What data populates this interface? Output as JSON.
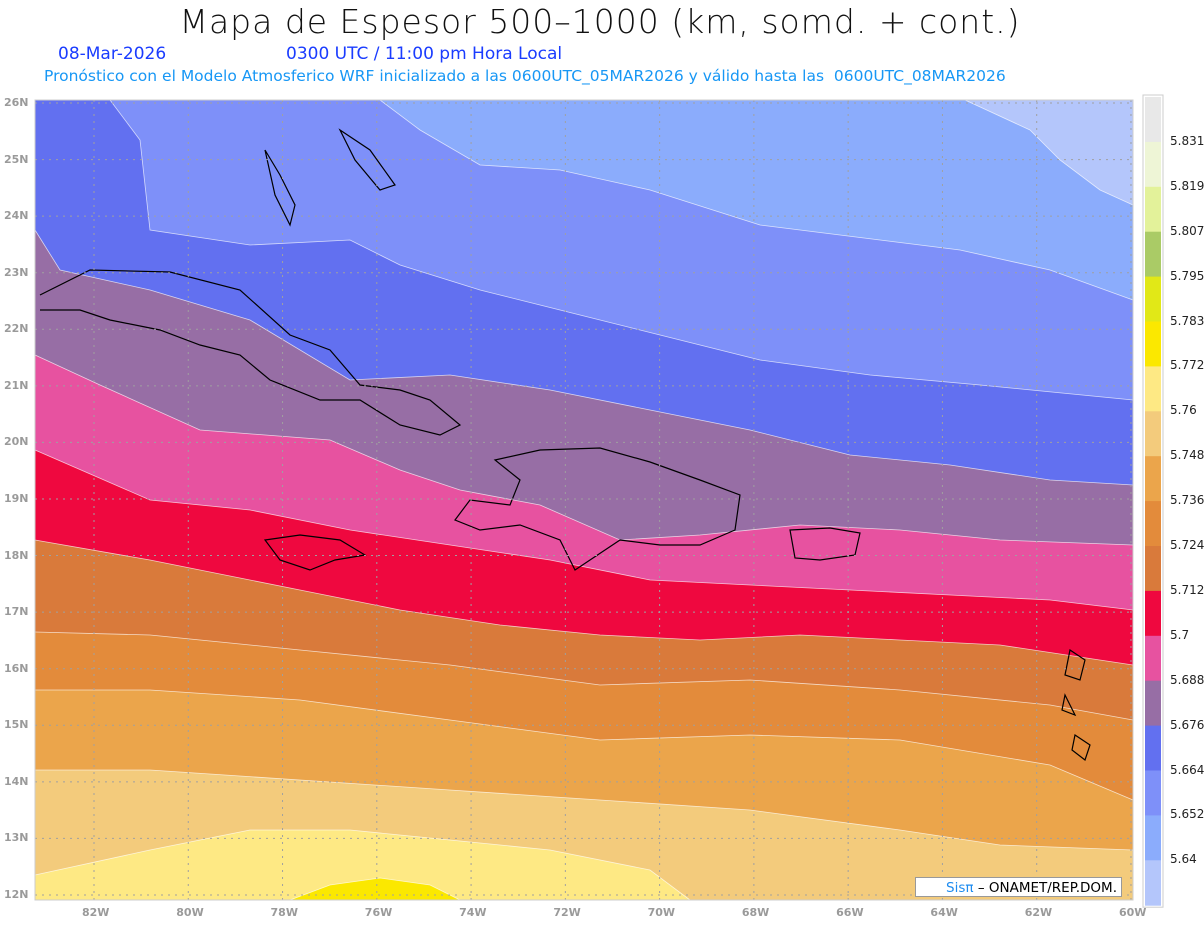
{
  "title": "Mapa de Espesor 500–1000 (km, somd. + cont.)",
  "date": "08-Mar-2026",
  "time": "0300 UTC / 11:00 pm Hora Local",
  "forecast_info": "Pronóstico con el Modelo Atmosferico WRF inicializado a las 0600UTC_05MAR2026 y válido hasta las  0600UTC_08MAR2026",
  "lat_labels": [
    "26N",
    "25N",
    "24N",
    "23N",
    "22N",
    "21N",
    "20N",
    "19N",
    "18N",
    "17N",
    "16N",
    "15N",
    "14N",
    "13N",
    "12N"
  ],
  "lon_labels": [
    "82W",
    "80W",
    "78W",
    "76W",
    "74W",
    "72W",
    "70W",
    "68W",
    "66W",
    "64W",
    "62W",
    "60W"
  ],
  "colorbar": {
    "labels": [
      "5.831",
      "5.819",
      "5.807",
      "5.795",
      "5.783",
      "5.772",
      "5.76",
      "5.748",
      "5.736",
      "5.724",
      "5.712",
      "5.7",
      "5.688",
      "5.676",
      "5.664",
      "5.652",
      "5.64"
    ],
    "colors": [
      "#e8e8e8",
      "#eef5d6",
      "#e3f29a",
      "#aacb66",
      "#e1e817",
      "#fbe800",
      "#fee984",
      "#f3cb7c",
      "#eba54b",
      "#e38b3b",
      "#d97a3b",
      "#ef083f",
      "#e752a0",
      "#976ea5",
      "#6270f0",
      "#7e90f9",
      "#8bacfc",
      "#b4c6fb"
    ]
  },
  "credit": {
    "logo": "Sisπ",
    "text": " –  ONAMET/REP.DOM."
  }
}
